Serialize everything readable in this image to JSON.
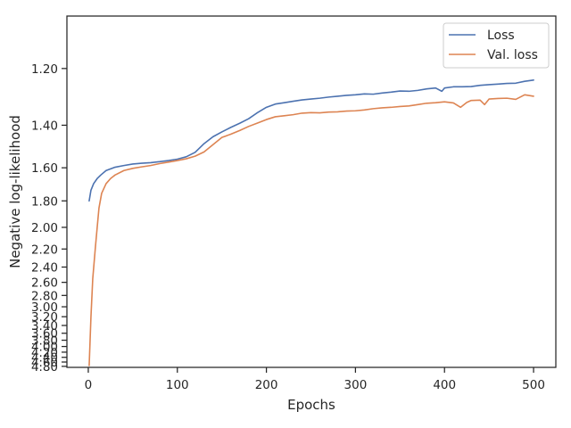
{
  "chart_data": {
    "type": "line",
    "title": "",
    "xlabel": "Epochs",
    "ylabel": "Negative log-likelihood",
    "xlim": [
      -24,
      525
    ],
    "x_ticks": [
      "0",
      "100",
      "200",
      "300",
      "400",
      "500"
    ],
    "y_ticks": [
      "1.20",
      "1.40",
      "1.60",
      "1.80",
      "2.00",
      "2.20",
      "2.40",
      "2.60",
      "2.80",
      "3.00",
      "3.20",
      "3.40",
      "3.60",
      "3.80",
      "4.00",
      "4.20",
      "4.40",
      "4.60",
      "4.80"
    ],
    "y_scale": "reciprocal",
    "ylim": [
      1.06,
      4.85
    ],
    "grid": false,
    "legend_position": "top-right",
    "series": [
      {
        "name": "Loss",
        "color": "#4c72b0",
        "points": [
          [
            1,
            1.8
          ],
          [
            3,
            1.73
          ],
          [
            6,
            1.69
          ],
          [
            10,
            1.66
          ],
          [
            14,
            1.64
          ],
          [
            20,
            1.615
          ],
          [
            30,
            1.597
          ],
          [
            40,
            1.588
          ],
          [
            50,
            1.58
          ],
          [
            60,
            1.576
          ],
          [
            70,
            1.573
          ],
          [
            80,
            1.568
          ],
          [
            90,
            1.562
          ],
          [
            100,
            1.555
          ],
          [
            110,
            1.543
          ],
          [
            120,
            1.521
          ],
          [
            130,
            1.48
          ],
          [
            140,
            1.449
          ],
          [
            150,
            1.428
          ],
          [
            160,
            1.409
          ],
          [
            170,
            1.392
          ],
          [
            180,
            1.374
          ],
          [
            190,
            1.35
          ],
          [
            200,
            1.33
          ],
          [
            210,
            1.318
          ],
          [
            220,
            1.313
          ],
          [
            230,
            1.308
          ],
          [
            240,
            1.303
          ],
          [
            250,
            1.3
          ],
          [
            260,
            1.297
          ],
          [
            270,
            1.293
          ],
          [
            280,
            1.29
          ],
          [
            290,
            1.287
          ],
          [
            300,
            1.285
          ],
          [
            310,
            1.282
          ],
          [
            320,
            1.283
          ],
          [
            330,
            1.279
          ],
          [
            340,
            1.276
          ],
          [
            350,
            1.272
          ],
          [
            360,
            1.273
          ],
          [
            370,
            1.27
          ],
          [
            380,
            1.265
          ],
          [
            390,
            1.262
          ],
          [
            397,
            1.273
          ],
          [
            400,
            1.262
          ],
          [
            410,
            1.258
          ],
          [
            420,
            1.258
          ],
          [
            430,
            1.257
          ],
          [
            440,
            1.253
          ],
          [
            450,
            1.251
          ],
          [
            460,
            1.249
          ],
          [
            470,
            1.247
          ],
          [
            480,
            1.246
          ],
          [
            490,
            1.24
          ],
          [
            500,
            1.236
          ]
        ]
      },
      {
        "name": "Val. loss",
        "color": "#dd8452",
        "points": [
          [
            1,
            4.76
          ],
          [
            3,
            3.2
          ],
          [
            5,
            2.55
          ],
          [
            8,
            2.18
          ],
          [
            10,
            2.0
          ],
          [
            12,
            1.85
          ],
          [
            15,
            1.75
          ],
          [
            20,
            1.69
          ],
          [
            25,
            1.66
          ],
          [
            30,
            1.64
          ],
          [
            40,
            1.615
          ],
          [
            50,
            1.603
          ],
          [
            60,
            1.595
          ],
          [
            70,
            1.588
          ],
          [
            80,
            1.578
          ],
          [
            90,
            1.57
          ],
          [
            100,
            1.562
          ],
          [
            110,
            1.553
          ],
          [
            120,
            1.54
          ],
          [
            130,
            1.519
          ],
          [
            140,
            1.485
          ],
          [
            150,
            1.452
          ],
          [
            160,
            1.438
          ],
          [
            170,
            1.422
          ],
          [
            180,
            1.405
          ],
          [
            190,
            1.391
          ],
          [
            200,
            1.377
          ],
          [
            210,
            1.366
          ],
          [
            220,
            1.362
          ],
          [
            230,
            1.358
          ],
          [
            240,
            1.352
          ],
          [
            250,
            1.35
          ],
          [
            260,
            1.351
          ],
          [
            270,
            1.348
          ],
          [
            280,
            1.347
          ],
          [
            290,
            1.344
          ],
          [
            300,
            1.343
          ],
          [
            310,
            1.34
          ],
          [
            320,
            1.335
          ],
          [
            330,
            1.332
          ],
          [
            340,
            1.33
          ],
          [
            350,
            1.327
          ],
          [
            360,
            1.325
          ],
          [
            370,
            1.32
          ],
          [
            380,
            1.315
          ],
          [
            390,
            1.313
          ],
          [
            400,
            1.31
          ],
          [
            410,
            1.314
          ],
          [
            418,
            1.33
          ],
          [
            425,
            1.312
          ],
          [
            430,
            1.305
          ],
          [
            440,
            1.304
          ],
          [
            445,
            1.32
          ],
          [
            450,
            1.3
          ],
          [
            460,
            1.298
          ],
          [
            470,
            1.297
          ],
          [
            480,
            1.301
          ],
          [
            490,
            1.285
          ],
          [
            500,
            1.29
          ]
        ]
      }
    ]
  }
}
